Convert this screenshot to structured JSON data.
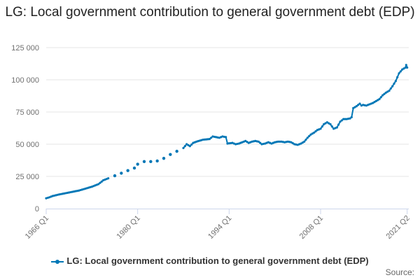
{
  "chart_data": {
    "type": "line",
    "title": "LG: Local government contribution to general government debt (EDP)",
    "xlabel": "",
    "ylabel": "",
    "x_tick_labels": [
      "1966 Q1",
      "1980 Q1",
      "1994 Q1",
      "2008 Q1",
      "2021 Q2"
    ],
    "x_ticks_year": [
      1966.0,
      1980.0,
      1994.0,
      2008.0,
      2021.25
    ],
    "y_ticks": [
      0,
      25000,
      50000,
      75000,
      100000,
      125000
    ],
    "y_tick_labels": [
      "0",
      "25 000",
      "50 000",
      "75 000",
      "100 000",
      "125 000"
    ],
    "xlim": [
      1966.0,
      2021.5
    ],
    "ylim": [
      0,
      125000
    ],
    "grid": true,
    "legend_position": "bottom",
    "series": [
      {
        "name": "LG: Local government contribution to general government debt (EDP)",
        "color": "#0077b6",
        "segments": [
          {
            "quarterly": true,
            "points": [
              [
                1966.0,
                8000
              ],
              [
                1966.5,
                8800
              ],
              [
                1967.0,
                9800
              ],
              [
                1968.0,
                11000
              ],
              [
                1969.0,
                12000
              ],
              [
                1970.0,
                13000
              ],
              [
                1971.0,
                14000
              ],
              [
                1972.0,
                15500
              ],
              [
                1973.0,
                17000
              ],
              [
                1974.0,
                19000
              ],
              [
                1974.75,
                22000
              ],
              [
                1975.5,
                23500
              ]
            ]
          },
          {
            "quarterly": false,
            "points": [
              [
                1976.5,
                25500
              ],
              [
                1977.5,
                27500
              ],
              [
                1978.5,
                29500
              ],
              [
                1979.5,
                31500
              ],
              [
                1980.0,
                34500
              ],
              [
                1981.0,
                36500
              ],
              [
                1982.0,
                36500
              ],
              [
                1983.0,
                37000
              ],
              [
                1984.0,
                39000
              ],
              [
                1985.0,
                42000
              ],
              [
                1986.0,
                44500
              ]
            ]
          },
          {
            "quarterly": true,
            "points": [
              [
                1987.0,
                47000
              ],
              [
                1987.5,
                50000
              ],
              [
                1988.0,
                48500
              ],
              [
                1988.5,
                51000
              ],
              [
                1989.0,
                52000
              ],
              [
                1990.0,
                53500
              ],
              [
                1991.0,
                54000
              ],
              [
                1991.5,
                56000
              ],
              [
                1992.0,
                55500
              ],
              [
                1992.5,
                55000
              ],
              [
                1993.0,
                56000
              ],
              [
                1993.5,
                55500
              ],
              [
                1993.75,
                50500
              ],
              [
                1994.5,
                51000
              ],
              [
                1995.0,
                50000
              ],
              [
                1995.5,
                50500
              ],
              [
                1996.0,
                51500
              ],
              [
                1996.5,
                52500
              ],
              [
                1997.0,
                51000
              ],
              [
                1997.5,
                52000
              ],
              [
                1998.0,
                52500
              ],
              [
                1998.5,
                52000
              ],
              [
                1999.0,
                50000
              ],
              [
                1999.5,
                50500
              ],
              [
                2000.0,
                51500
              ],
              [
                2000.5,
                50500
              ],
              [
                2001.0,
                51500
              ],
              [
                2001.5,
                52000
              ],
              [
                2002.0,
                52000
              ],
              [
                2002.5,
                51500
              ],
              [
                2003.0,
                52000
              ],
              [
                2003.5,
                51500
              ],
              [
                2004.0,
                50000
              ],
              [
                2004.5,
                49500
              ],
              [
                2005.0,
                50500
              ],
              [
                2005.5,
                52000
              ],
              [
                2006.0,
                55000
              ],
              [
                2006.5,
                57500
              ],
              [
                2007.0,
                59000
              ],
              [
                2007.5,
                61000
              ],
              [
                2008.0,
                62000
              ],
              [
                2008.5,
                65500
              ],
              [
                2009.0,
                67000
              ],
              [
                2009.5,
                65500
              ],
              [
                2010.0,
                62000
              ],
              [
                2010.5,
                63000
              ],
              [
                2011.0,
                67500
              ],
              [
                2011.5,
                69500
              ],
              [
                2012.0,
                69500
              ],
              [
                2012.5,
                70000
              ],
              [
                2012.75,
                71000
              ],
              [
                2013.0,
                78000
              ],
              [
                2013.5,
                79500
              ],
              [
                2014.0,
                81500
              ],
              [
                2014.25,
                80000
              ],
              [
                2014.5,
                80500
              ],
              [
                2015.0,
                80000
              ],
              [
                2015.5,
                81000
              ],
              [
                2016.0,
                82000
              ],
              [
                2016.5,
                83500
              ],
              [
                2017.0,
                85000
              ],
              [
                2017.5,
                88000
              ],
              [
                2018.0,
                90000
              ],
              [
                2018.5,
                91500
              ],
              [
                2019.0,
                95000
              ],
              [
                2019.5,
                99000
              ],
              [
                2020.0,
                105000
              ],
              [
                2020.5,
                108000
              ],
              [
                2021.0,
                109500
              ],
              [
                2021.1,
                111500
              ],
              [
                2021.25,
                109500
              ]
            ]
          }
        ]
      }
    ]
  },
  "source_label": "Source:"
}
